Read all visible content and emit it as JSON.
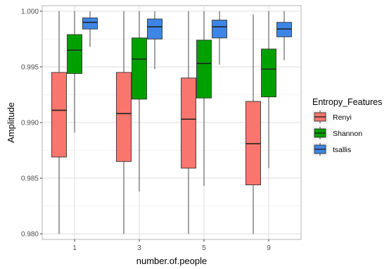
{
  "chart_data": {
    "type": "boxplot",
    "xlabel": "number.of.people",
    "ylabel": "Amplitude",
    "categories": [
      "1",
      "3",
      "5",
      "9"
    ],
    "ylim": [
      0.9795,
      1.0005
    ],
    "yticks": [
      0.98,
      0.985,
      0.99,
      0.995,
      1.0
    ],
    "ytick_labels": [
      "0.980",
      "0.985",
      "0.990",
      "0.995",
      "1.000"
    ],
    "grid": true,
    "legend": {
      "title": "Entropy_Features",
      "position": "right"
    },
    "series": [
      {
        "name": "Renyi",
        "color": "#F8766D",
        "boxes": [
          {
            "whisker_low": 0.98,
            "q1": 0.9869,
            "median": 0.9911,
            "q3": 0.9945,
            "whisker_high": 1.0
          },
          {
            "whisker_low": 0.98,
            "q1": 0.9865,
            "median": 0.9908,
            "q3": 0.9945,
            "whisker_high": 1.0
          },
          {
            "whisker_low": 0.98,
            "q1": 0.9859,
            "median": 0.9903,
            "q3": 0.994,
            "whisker_high": 1.0
          },
          {
            "whisker_low": 0.98,
            "q1": 0.9844,
            "median": 0.9881,
            "q3": 0.9919,
            "whisker_high": 0.9997
          }
        ]
      },
      {
        "name": "Shannon",
        "color": "#00A000",
        "boxes": [
          {
            "whisker_low": 0.9891,
            "q1": 0.9944,
            "median": 0.9965,
            "q3": 0.9979,
            "whisker_high": 1.0
          },
          {
            "whisker_low": 0.9838,
            "q1": 0.9921,
            "median": 0.9957,
            "q3": 0.9976,
            "whisker_high": 1.0
          },
          {
            "whisker_low": 0.9843,
            "q1": 0.9922,
            "median": 0.9953,
            "q3": 0.9974,
            "whisker_high": 1.0
          },
          {
            "whisker_low": 0.9859,
            "q1": 0.9923,
            "median": 0.9948,
            "q3": 0.9966,
            "whisker_high": 1.0
          }
        ]
      },
      {
        "name": "tsallis",
        "color": "#3D86E8",
        "boxes": [
          {
            "whisker_low": 0.9968,
            "q1": 0.9984,
            "median": 0.999,
            "q3": 0.9994,
            "whisker_high": 1.0
          },
          {
            "whisker_low": 0.9948,
            "q1": 0.9975,
            "median": 0.9986,
            "q3": 0.9993,
            "whisker_high": 1.0
          },
          {
            "whisker_low": 0.9952,
            "q1": 0.9976,
            "median": 0.9986,
            "q3": 0.9992,
            "whisker_high": 1.0
          },
          {
            "whisker_low": 0.9956,
            "q1": 0.9977,
            "median": 0.9984,
            "q3": 0.999,
            "whisker_high": 1.0
          }
        ]
      }
    ]
  }
}
